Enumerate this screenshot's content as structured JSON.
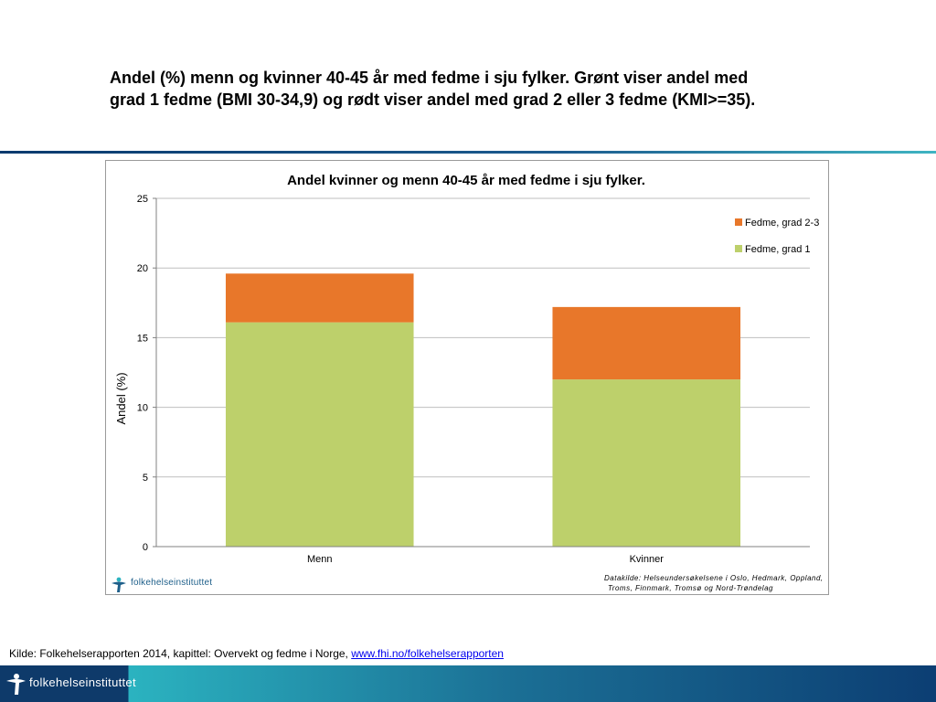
{
  "slide": {
    "title_line1": "Andel (%) menn og kvinner 40-45 år med fedme i sju fylker. Grønt viser andel med",
    "title_line2": "grad 1 fedme (BMI 30-34,9) og rødt viser andel med grad 2 eller 3 fedme (KMI>=35)."
  },
  "chart_data": {
    "type": "bar",
    "stacked": true,
    "title": "Andel kvinner og menn 40-45 år med fedme i sju fylker.",
    "categories": [
      "Menn",
      "Kvinner"
    ],
    "series": [
      {
        "name": "Fedme, grad 1",
        "values": [
          16.1,
          12.0
        ],
        "color": "#bdd06b"
      },
      {
        "name": "Fedme, grad 2-3",
        "values": [
          3.5,
          5.2
        ],
        "color": "#e8772a"
      }
    ],
    "xlabel": "",
    "ylabel": "Andel (%)",
    "ylim": [
      0,
      25
    ],
    "yticks": [
      "0",
      "5",
      "10",
      "15",
      "20",
      "25"
    ],
    "grid": true,
    "legend_position": "top-right",
    "legend_order": [
      "Fedme, grad 2-3",
      "Fedme, grad 1"
    ]
  },
  "chart_footer": {
    "logo_text": "folkehelseinstituttet",
    "source_line1": "Datakilde: Helseundersøkelsene i Oslo, Hedmark, Oppland,",
    "source_line2": "Troms, Finnmark, Tromsø og Nord-Trøndelag"
  },
  "footer": {
    "source_prefix": "Kilde: Folkehelserapporten 2014, kapittel: Overvekt og fedme i Norge, ",
    "source_link": "www.fhi.no/folkehelserapporten",
    "logo_text": "folkehelseinstituttet"
  },
  "colors": {
    "grade1": "#bdd06b",
    "grade23": "#e8772a",
    "footer_dark": "#0b3b6f",
    "footer_teal": "#2bb3c0"
  }
}
